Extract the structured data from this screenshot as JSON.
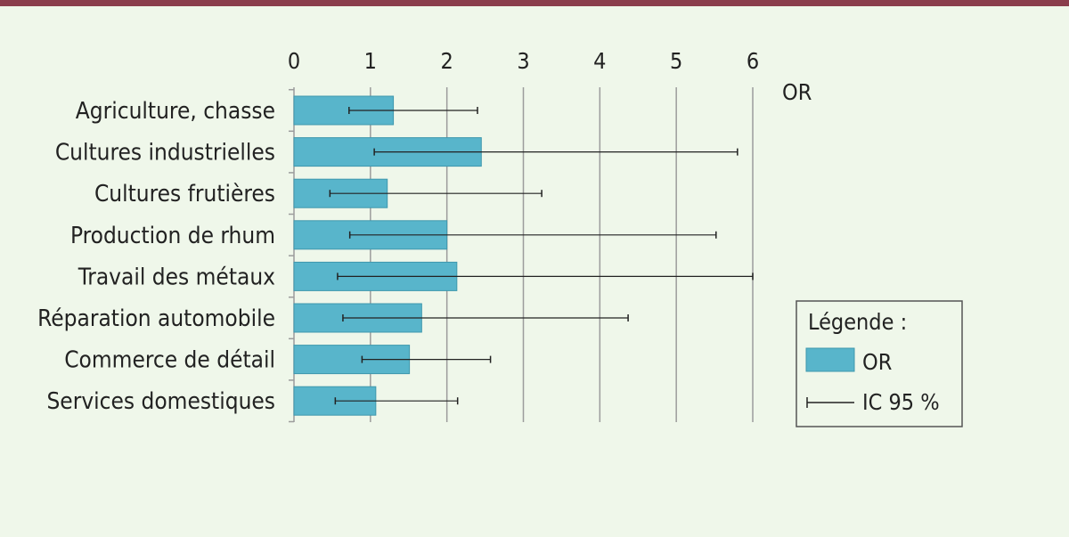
{
  "colors": {
    "top_rule": "#8a3e4c",
    "background": "#eff7ea",
    "bar_fill": "#58b5cb",
    "bar_stroke": "#3f98ad",
    "grid": "#9c9c9c",
    "error_bar": "#222222"
  },
  "chart_data": {
    "type": "bar",
    "orientation": "horizontal",
    "x_unit_label": "OR",
    "xlim": [
      0,
      6
    ],
    "xticks": [
      "0",
      "1",
      "2",
      "3",
      "4",
      "5",
      "6"
    ],
    "grid": true,
    "categories": [
      "Agriculture, chasse",
      "Cultures industrielles",
      "Cultures frutières",
      "Production de rhum",
      "Travail des métaux",
      "Réparation automobile",
      "Commerce de détail",
      "Services domestiques"
    ],
    "series": [
      {
        "name": "OR",
        "values": [
          1.3,
          2.45,
          1.22,
          2.0,
          2.13,
          1.67,
          1.51,
          1.07
        ],
        "ci_low": [
          0.72,
          1.05,
          0.47,
          0.73,
          0.57,
          0.64,
          0.89,
          0.54
        ],
        "ci_high": [
          2.4,
          5.8,
          3.24,
          5.52,
          6.0,
          4.37,
          2.57,
          2.14
        ]
      }
    ],
    "legend": {
      "position": "right",
      "title": "Légende :",
      "items": [
        "OR",
        "IC 95 %"
      ]
    }
  }
}
